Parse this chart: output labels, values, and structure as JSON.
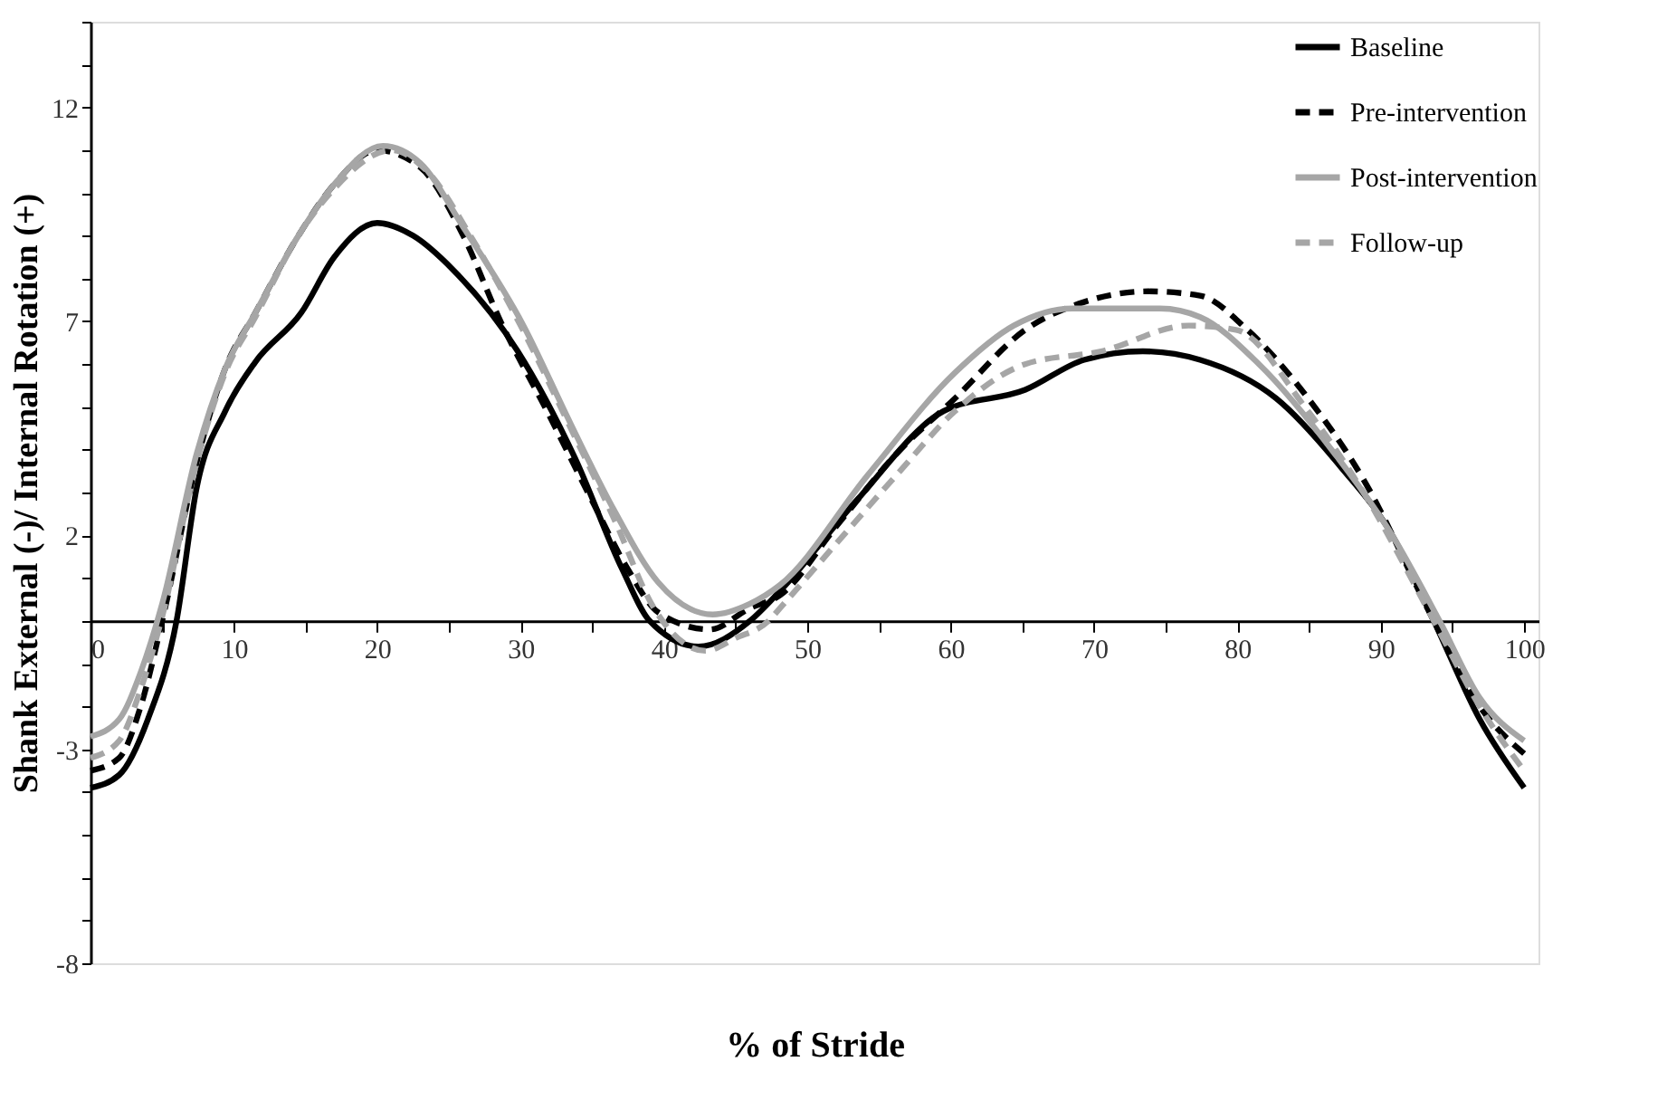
{
  "chart_data": {
    "type": "line",
    "xlabel": "% of Stride",
    "ylabel": "Shank External (-)/ Internal Rotation (+)",
    "xlim": [
      0,
      101
    ],
    "ylim": [
      -8,
      14
    ],
    "xticks": [
      0,
      {
        "value": 5,
        "label": null
      },
      10,
      {
        "value": 15,
        "label": null
      },
      20,
      {
        "value": 25,
        "label": null
      },
      30,
      {
        "value": 35,
        "label": null
      },
      40,
      {
        "value": 45,
        "label": null
      },
      50,
      {
        "value": 55,
        "label": null
      },
      60,
      {
        "value": 65,
        "label": null
      },
      70,
      {
        "value": 75,
        "label": null
      },
      80,
      {
        "value": 85,
        "label": null
      },
      90,
      {
        "value": 95,
        "label": null
      },
      100
    ],
    "yticks": [
      -8,
      {
        "value": -7,
        "label": null
      },
      {
        "value": -6,
        "label": null
      },
      {
        "value": -5,
        "label": null
      },
      {
        "value": -4,
        "label": null
      },
      -3,
      {
        "value": -2,
        "label": null
      },
      {
        "value": -1,
        "label": null
      },
      {
        "value": 0,
        "label": null
      },
      {
        "value": 1,
        "label": null
      },
      2,
      {
        "value": 3,
        "label": null
      },
      {
        "value": 4,
        "label": null
      },
      {
        "value": 5,
        "label": null
      },
      {
        "value": 6,
        "label": null
      },
      7,
      {
        "value": 8,
        "label": null
      },
      {
        "value": 9,
        "label": null
      },
      {
        "value": 10,
        "label": null
      },
      {
        "value": 11,
        "label": null
      },
      12,
      {
        "value": 13,
        "label": null
      },
      {
        "value": 14,
        "label": null
      }
    ],
    "grid": false,
    "legend": "top right",
    "marker": "none",
    "series": [
      {
        "name": "Baseline",
        "color": "#000000",
        "line_style": "solid",
        "x": [
          0,
          2,
          4,
          6,
          7.4,
          9.4,
          11.5,
          14.7,
          17,
          20,
          22.5,
          25.3,
          29.8,
          33.8,
          37.1,
          39,
          42.4,
          46,
          48.1,
          53.4,
          59.5,
          65.2,
          69.3,
          73.4,
          77.4,
          82.7,
          87.2,
          90.8,
          93.7,
          96.9,
          100
        ],
        "values": [
          -3.9,
          -3.6,
          -2.3,
          0,
          3.1,
          4.9,
          6.05,
          7.2,
          8.5,
          9.3,
          9.0,
          8.2,
          6.3,
          3.8,
          1.2,
          0,
          -0.6,
          0,
          0.7,
          2.8,
          4.9,
          5.4,
          6.1,
          6.3,
          6.1,
          5.2,
          3.6,
          2.0,
          0,
          -2.3,
          -3.9
        ]
      },
      {
        "name": "Pre-intervention",
        "color": "#000000",
        "line_style": "dashed",
        "x": [
          0,
          2,
          3.5,
          5,
          7.4,
          9.4,
          11.5,
          14.5,
          17,
          20,
          23,
          26,
          28.6,
          32,
          35,
          37.5,
          39.6,
          43.2,
          46,
          48.1,
          52,
          56.2,
          60.3,
          65.2,
          69.3,
          73.8,
          77.4,
          80.7,
          84.7,
          88.8,
          93.7,
          96.9,
          100
        ],
        "values": [
          -3.5,
          -3.2,
          -2.0,
          0,
          3.7,
          5.9,
          7.2,
          9.0,
          10.2,
          11.0,
          10.6,
          9.0,
          7.0,
          4.8,
          2.8,
          1.2,
          0.2,
          -0.2,
          0.3,
          0.6,
          2.2,
          3.9,
          5.2,
          6.8,
          7.45,
          7.7,
          7.6,
          6.8,
          5.3,
          3.3,
          0,
          -2.0,
          -3.1
        ]
      },
      {
        "name": "Post-intervention",
        "color": "#a6a6a6",
        "line_style": "solid",
        "x": [
          0,
          2,
          3.5,
          5,
          7.4,
          9.4,
          11.5,
          14.5,
          17,
          20.4,
          23,
          26,
          30.2,
          33.5,
          36.5,
          39.6,
          43.4,
          46,
          48.1,
          54.2,
          60.3,
          64.4,
          68.5,
          74.6,
          77.4,
          81.5,
          86.8,
          90.8,
          94.1,
          96.9,
          100
        ],
        "values": [
          -2.7,
          -2.3,
          -1.2,
          0.4,
          3.9,
          5.9,
          7.2,
          9.0,
          10.2,
          11.1,
          10.7,
          9.2,
          6.9,
          4.6,
          2.6,
          0.9,
          0.15,
          0.4,
          0.84,
          3.4,
          5.8,
          6.9,
          7.3,
          7.3,
          7.1,
          6.0,
          3.9,
          2.0,
          0,
          -1.8,
          -2.8
        ]
      },
      {
        "name": "Follow-up",
        "color": "#a6a6a6",
        "line_style": "dashed",
        "x": [
          0,
          2,
          3.5,
          5,
          7.4,
          9.4,
          11.5,
          14.5,
          17,
          21,
          23.5,
          26.5,
          30,
          33.5,
          36.5,
          39.3,
          42.9,
          45,
          47.3,
          48.1,
          52,
          56.2,
          60.3,
          65.2,
          70.5,
          76.6,
          79.9,
          84.7,
          88.8,
          93.7,
          96.9,
          100
        ],
        "values": [
          -3.2,
          -2.8,
          -1.6,
          0.1,
          3.7,
          5.8,
          7.1,
          9.0,
          10.1,
          11.0,
          10.5,
          9.0,
          6.9,
          4.5,
          2.4,
          0.3,
          -0.7,
          -0.4,
          0,
          0.3,
          1.8,
          3.4,
          4.9,
          6.0,
          6.3,
          6.9,
          6.8,
          5.0,
          3.0,
          0,
          -2.0,
          -3.5
        ]
      }
    ]
  }
}
